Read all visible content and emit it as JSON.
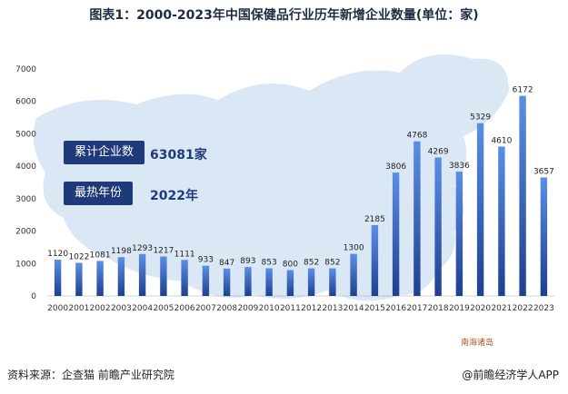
{
  "title": "图表1：2000-2023年中国保健品行业历年新增企业数量(单位：家)",
  "stats": {
    "total_label": "累计企业数",
    "total_value": "63081家",
    "peak_label": "最热年份",
    "peak_value": "2022年"
  },
  "map_label": "南海诸岛",
  "source": "资料来源：企查猫 前瞻产业研究院",
  "brand": "@前瞻经济学人APP",
  "colors": {
    "bar_top": "#5b8ee6",
    "bar_bottom": "#1e3f8f",
    "map": "#cfe0f2",
    "label_box": "#1f3a7a"
  },
  "chart_data": {
    "type": "bar",
    "categories": [
      "2000",
      "2001",
      "2002",
      "2003",
      "2004",
      "2005",
      "2006",
      "2007",
      "2008",
      "2009",
      "2010",
      "2011",
      "2012",
      "2013",
      "2014",
      "2015",
      "2016",
      "2017",
      "2018",
      "2019",
      "2020",
      "2021",
      "2022",
      "2023"
    ],
    "values": [
      1120,
      1022,
      1081,
      1198,
      1293,
      1217,
      1111,
      933,
      847,
      893,
      853,
      800,
      852,
      852,
      1300,
      2185,
      3806,
      4768,
      4269,
      3836,
      5329,
      4610,
      6172,
      3657
    ],
    "yticks": [
      0,
      1000,
      2000,
      3000,
      4000,
      5000,
      6000,
      7000
    ],
    "ylim": [
      0,
      7000
    ],
    "xlabel": "",
    "ylabel": ""
  }
}
